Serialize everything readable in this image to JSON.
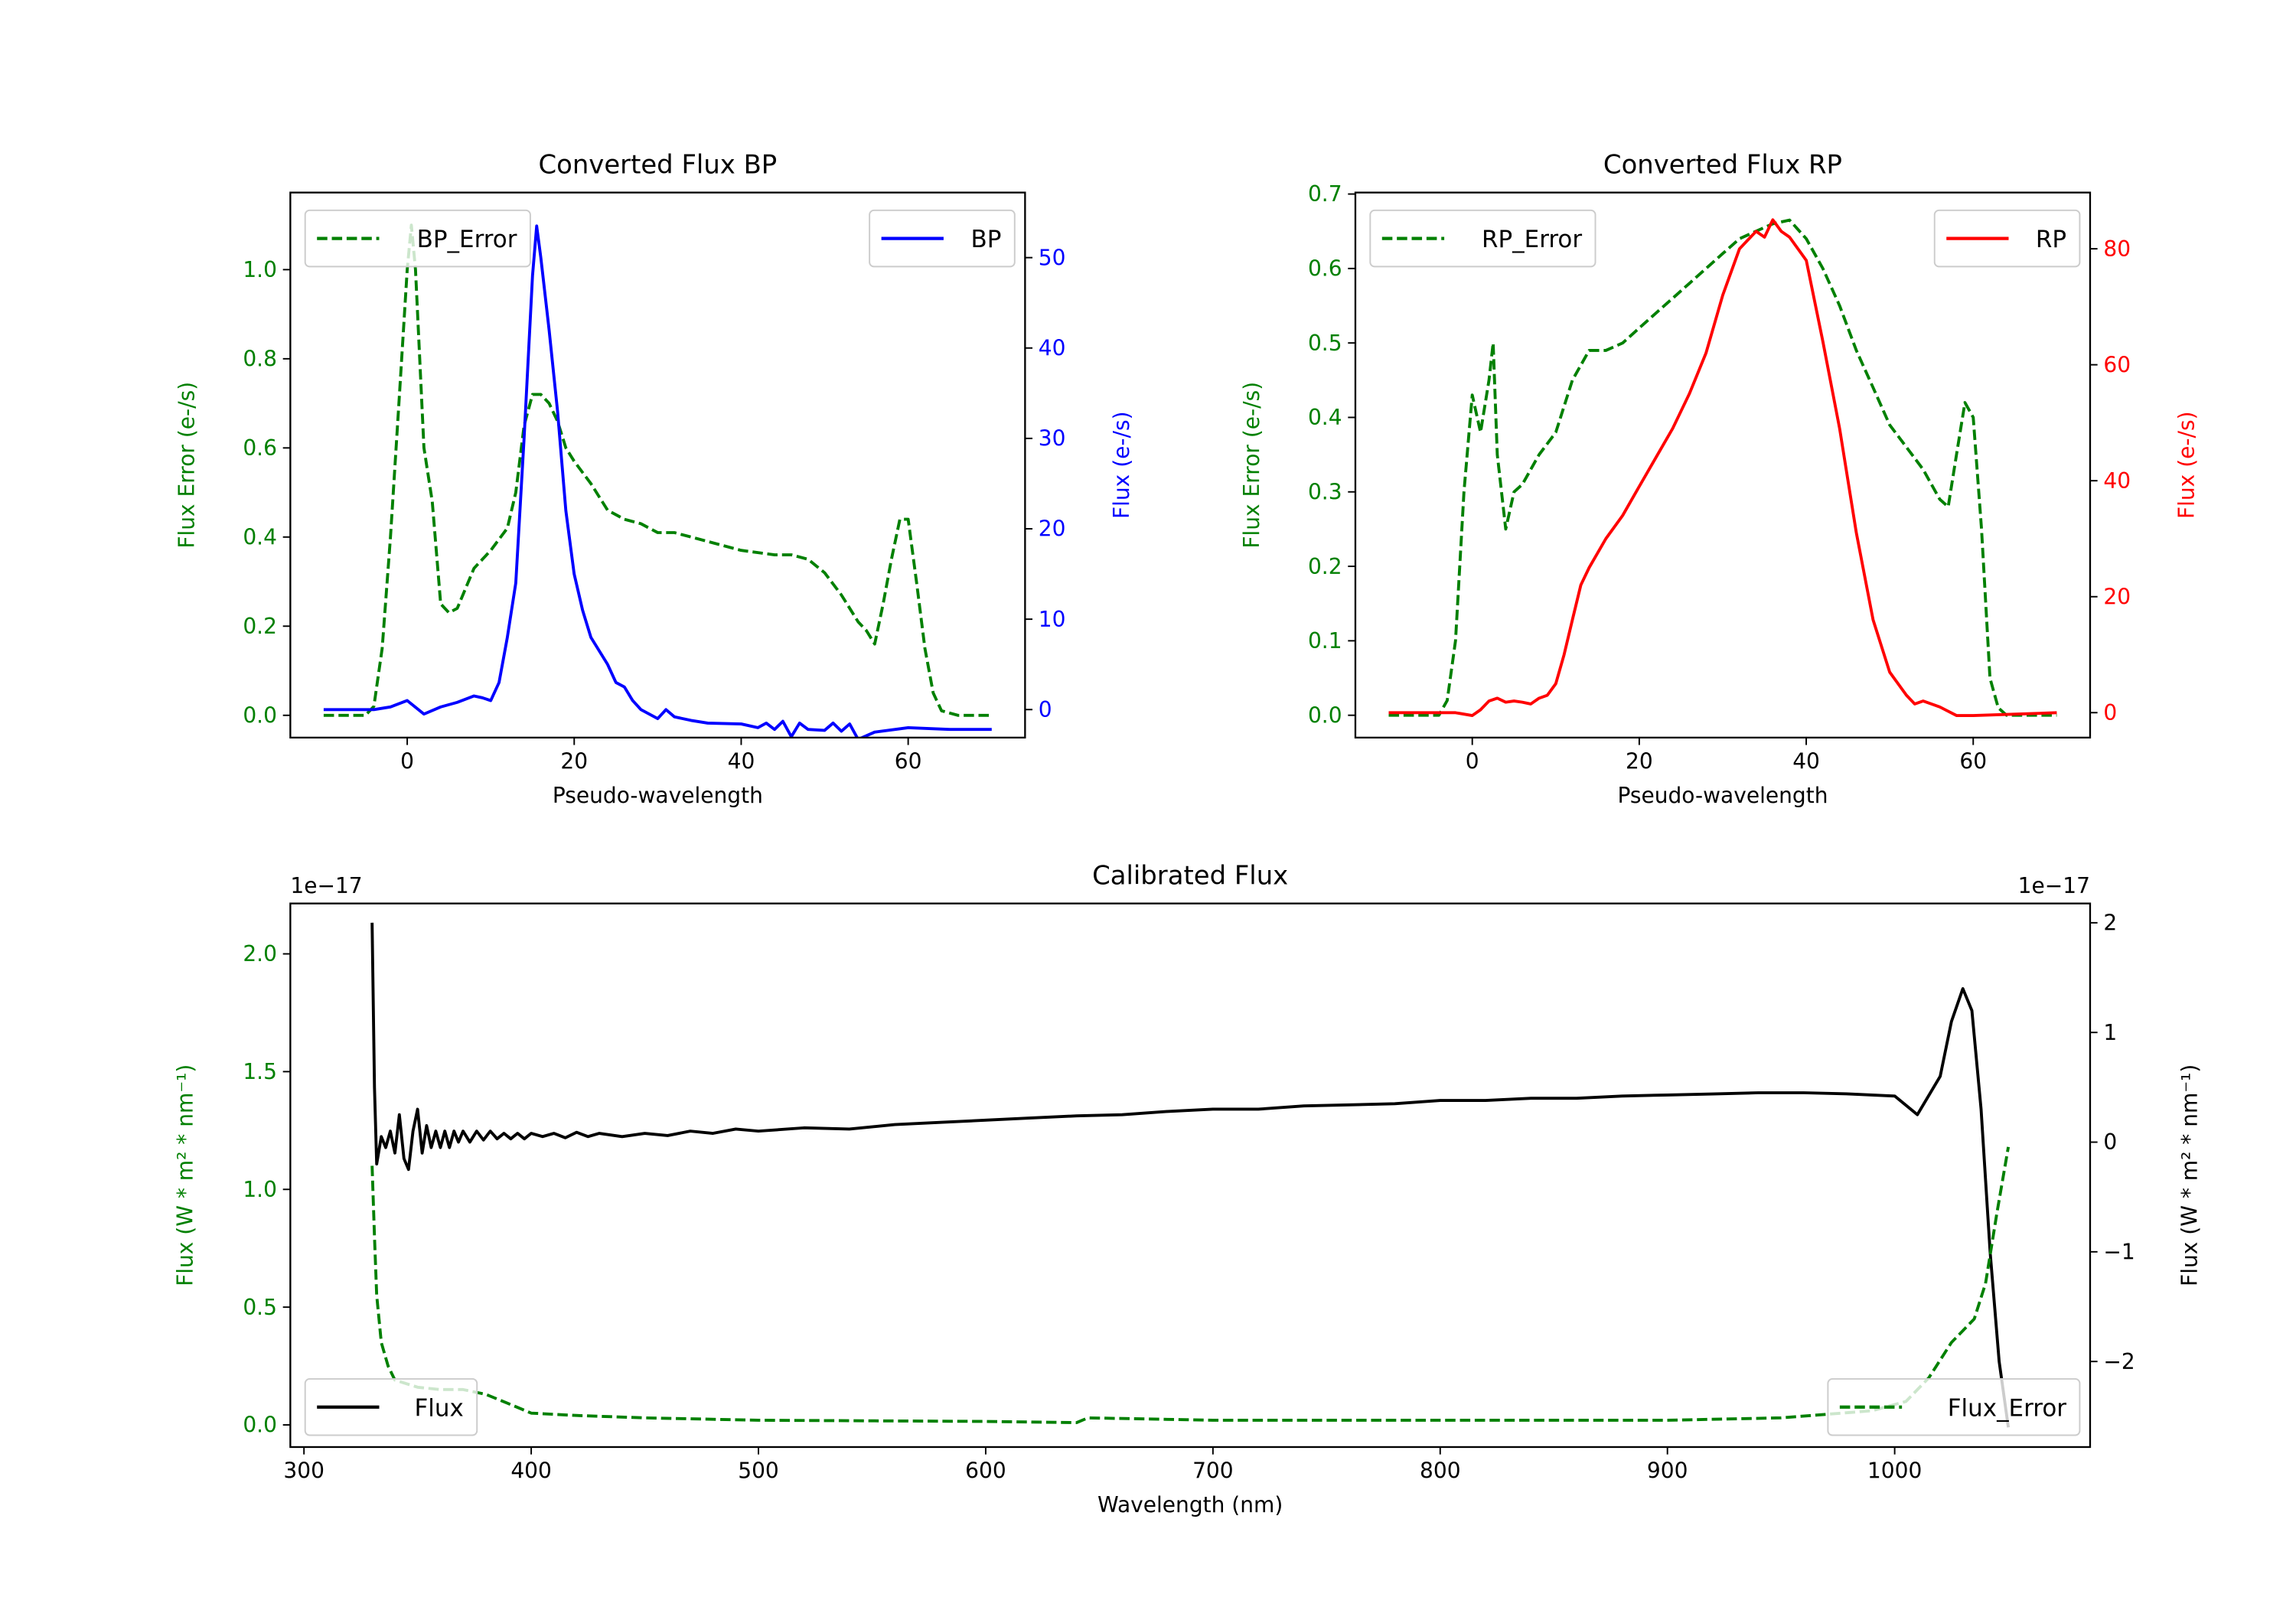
{
  "colors": {
    "error": "#008000",
    "bp": "#0000ff",
    "rp": "#ff0000",
    "flux": "#000000"
  },
  "chart_data": [
    {
      "type": "line",
      "title": "Converted Flux BP",
      "xlabel": "Pseudo-wavelength",
      "ylabel_left": "Flux Error (e-/s)",
      "ylabel_right": "Flux (e-/s)",
      "xlim": [
        -14,
        74
      ],
      "ylim_left": [
        -0.05,
        1.173
      ],
      "ylim_right": [
        -3.1,
        57.2
      ],
      "xticks": [
        0,
        20,
        40,
        60
      ],
      "yticks_left": [
        0.0,
        0.2,
        0.4,
        0.6,
        0.8,
        1.0
      ],
      "yticks_right": [
        0,
        10,
        20,
        30,
        40,
        50
      ],
      "left_tick_color": "#008000",
      "right_tick_color": "#0000ff",
      "legend_left": "BP_Error",
      "legend_right": "BP",
      "series": [
        {
          "name": "BP_Error",
          "axis": "left",
          "style": "dashed",
          "color": "#008000",
          "x": [
            -10,
            -5,
            -4,
            -3,
            -2,
            -1,
            0,
            0.5,
            1,
            2,
            3,
            4,
            5,
            6,
            8,
            10,
            12,
            13,
            14,
            15,
            16,
            17,
            18,
            19,
            20,
            22,
            24,
            26,
            28,
            30,
            32,
            36,
            40,
            44,
            46,
            48,
            50,
            52,
            54,
            55,
            56,
            57,
            58,
            59,
            60,
            61,
            62,
            63,
            64,
            66,
            70
          ],
          "y": [
            0,
            0,
            0.02,
            0.15,
            0.4,
            0.7,
            1.0,
            1.1,
            1.0,
            0.6,
            0.48,
            0.25,
            0.23,
            0.24,
            0.33,
            0.37,
            0.42,
            0.5,
            0.65,
            0.72,
            0.72,
            0.7,
            0.66,
            0.6,
            0.57,
            0.52,
            0.46,
            0.44,
            0.43,
            0.41,
            0.41,
            0.39,
            0.37,
            0.36,
            0.36,
            0.35,
            0.32,
            0.27,
            0.21,
            0.19,
            0.16,
            0.25,
            0.35,
            0.44,
            0.44,
            0.3,
            0.15,
            0.05,
            0.01,
            0,
            0
          ]
        },
        {
          "name": "BP",
          "axis": "right",
          "style": "solid",
          "color": "#0000ff",
          "x": [
            -10,
            -4,
            -2,
            0,
            2,
            4,
            6,
            8,
            9,
            10,
            11,
            12,
            13,
            14,
            15,
            15.5,
            16,
            17,
            18,
            19,
            20,
            21,
            22,
            24,
            25,
            26,
            27,
            28,
            30,
            31,
            32,
            34,
            36,
            40,
            42,
            43,
            44,
            45,
            46,
            47,
            48,
            50,
            51,
            52,
            53,
            54,
            56,
            60,
            65,
            70
          ],
          "y": [
            0,
            0,
            0.3,
            1,
            -0.5,
            0.3,
            0.8,
            1.5,
            1.3,
            1,
            3,
            8,
            14,
            30,
            48,
            53.5,
            50,
            42,
            33,
            22,
            15,
            11,
            8,
            5,
            3,
            2.5,
            1,
            0,
            -1,
            0,
            -0.8,
            -1.2,
            -1.5,
            -1.6,
            -2,
            -1.5,
            -2.2,
            -1.3,
            -3,
            -1.5,
            -2.2,
            -2.3,
            -1.5,
            -2.4,
            -1.6,
            -3.3,
            -2.5,
            -2,
            -2.2,
            -2.2
          ]
        }
      ]
    },
    {
      "type": "line",
      "title": "Converted Flux RP",
      "xlabel": "Pseudo-wavelength",
      "ylabel_left": "Flux Error (e-/s)",
      "ylabel_right": "Flux (e-/s)",
      "xlim": [
        -14,
        74
      ],
      "ylim_left": [
        -0.03,
        0.702
      ],
      "ylim_right": [
        -4.3,
        89.7
      ],
      "xticks": [
        0,
        20,
        40,
        60
      ],
      "yticks_left": [
        0.0,
        0.1,
        0.2,
        0.3,
        0.4,
        0.5,
        0.6,
        0.7
      ],
      "yticks_right": [
        0,
        20,
        40,
        60,
        80
      ],
      "left_tick_color": "#008000",
      "right_tick_color": "#ff0000",
      "legend_left": "RP_Error",
      "legend_right": "RP",
      "series": [
        {
          "name": "RP_Error",
          "axis": "left",
          "style": "dashed",
          "color": "#008000",
          "x": [
            -10,
            -4,
            -3,
            -2,
            -1,
            0,
            1,
            2,
            2.5,
            3,
            4,
            5,
            6,
            8,
            10,
            12,
            14,
            16,
            18,
            20,
            22,
            24,
            26,
            28,
            30,
            32,
            34,
            36,
            38,
            40,
            42,
            44,
            46,
            48,
            50,
            52,
            54,
            56,
            57,
            58,
            59,
            60,
            61,
            62,
            63,
            64,
            70
          ],
          "y": [
            0,
            0,
            0.02,
            0.1,
            0.3,
            0.43,
            0.38,
            0.45,
            0.5,
            0.35,
            0.25,
            0.3,
            0.31,
            0.35,
            0.38,
            0.45,
            0.49,
            0.49,
            0.5,
            0.52,
            0.54,
            0.56,
            0.58,
            0.6,
            0.62,
            0.64,
            0.65,
            0.66,
            0.665,
            0.64,
            0.6,
            0.55,
            0.49,
            0.44,
            0.39,
            0.36,
            0.33,
            0.29,
            0.28,
            0.35,
            0.42,
            0.4,
            0.25,
            0.05,
            0.01,
            0,
            0
          ]
        },
        {
          "name": "RP",
          "axis": "right",
          "style": "solid",
          "color": "#ff0000",
          "x": [
            -10,
            -2,
            0,
            1,
            2,
            3,
            4,
            5,
            6,
            7,
            8,
            9,
            10,
            11,
            12,
            13,
            14,
            16,
            18,
            20,
            22,
            24,
            26,
            28,
            30,
            32,
            34,
            35,
            36,
            37,
            38,
            40,
            42,
            44,
            46,
            48,
            50,
            52,
            53,
            54,
            56,
            58,
            60,
            70
          ],
          "y": [
            0,
            0,
            -0.5,
            0.5,
            2,
            2.5,
            1.8,
            2,
            1.8,
            1.5,
            2.5,
            3,
            5,
            10,
            16,
            22,
            25,
            30,
            34,
            39,
            44,
            49,
            55,
            62,
            72,
            80,
            83,
            82,
            85,
            83,
            82,
            78,
            64,
            49,
            31,
            16,
            7,
            3,
            1.5,
            2,
            1,
            -0.5,
            -0.5,
            0
          ]
        }
      ]
    },
    {
      "type": "line",
      "title": "Calibrated Flux",
      "xlabel": "Wavelength (nm)",
      "ylabel_left": "Flux (W * m² * nm⁻¹)",
      "ylabel_right": "Flux (W * m² * nm⁻¹)",
      "offset_left": "1e−17",
      "offset_right": "1e−17",
      "xlim": [
        294,
        1086
      ],
      "ylim_left": [
        -0.094,
        2.214
      ],
      "ylim_right": [
        -2.78,
        2.176
      ],
      "xticks": [
        300,
        400,
        500,
        600,
        700,
        800,
        900,
        1000
      ],
      "yticks_left": [
        0.0,
        0.5,
        1.0,
        1.5,
        2.0
      ],
      "yticks_right": [
        -2,
        -1,
        0,
        1,
        2
      ],
      "left_tick_color": "#008000",
      "right_tick_color": "#000000",
      "legend_left": "Flux",
      "legend_right": "Flux_Error",
      "series": [
        {
          "name": "Flux",
          "axis": "right",
          "style": "solid",
          "color": "#000000",
          "x": [
            330,
            331,
            332,
            334,
            336,
            338,
            340,
            342,
            344,
            346,
            348,
            350,
            352,
            354,
            356,
            358,
            360,
            362,
            364,
            366,
            368,
            370,
            373,
            376,
            379,
            382,
            385,
            388,
            391,
            394,
            397,
            400,
            405,
            410,
            415,
            420,
            425,
            430,
            440,
            450,
            460,
            470,
            480,
            490,
            500,
            520,
            540,
            560,
            580,
            600,
            620,
            640,
            660,
            680,
            700,
            720,
            740,
            760,
            780,
            800,
            820,
            840,
            860,
            880,
            900,
            920,
            940,
            960,
            980,
            1000,
            1010,
            1020,
            1025,
            1030,
            1034,
            1038,
            1042,
            1046,
            1050
          ],
          "y": [
            2.0,
            0.5,
            -0.2,
            0.05,
            -0.05,
            0.1,
            -0.1,
            0.25,
            -0.15,
            -0.25,
            0.1,
            0.3,
            -0.1,
            0.15,
            -0.05,
            0.1,
            -0.05,
            0.1,
            -0.05,
            0.1,
            0.0,
            0.1,
            0.0,
            0.1,
            0.02,
            0.1,
            0.03,
            0.08,
            0.03,
            0.08,
            0.03,
            0.08,
            0.05,
            0.08,
            0.04,
            0.09,
            0.05,
            0.08,
            0.05,
            0.08,
            0.06,
            0.1,
            0.08,
            0.12,
            0.1,
            0.13,
            0.12,
            0.16,
            0.18,
            0.2,
            0.22,
            0.24,
            0.25,
            0.28,
            0.3,
            0.3,
            0.33,
            0.34,
            0.35,
            0.38,
            0.38,
            0.4,
            0.4,
            0.42,
            0.43,
            0.44,
            0.45,
            0.45,
            0.44,
            0.42,
            0.25,
            0.6,
            1.1,
            1.4,
            1.2,
            0.3,
            -1.0,
            -2.0,
            -2.6
          ]
        },
        {
          "name": "Flux_Error",
          "axis": "left",
          "style": "dashed",
          "color": "#008000",
          "x": [
            330,
            331,
            332,
            334,
            337,
            340,
            350,
            360,
            370,
            380,
            390,
            400,
            420,
            450,
            500,
            600,
            640,
            645,
            700,
            800,
            900,
            950,
            990,
            1005,
            1015,
            1025,
            1035,
            1040,
            1045,
            1050
          ],
          "y": [
            1.1,
            0.8,
            0.55,
            0.35,
            0.25,
            0.19,
            0.16,
            0.15,
            0.15,
            0.13,
            0.09,
            0.05,
            0.04,
            0.03,
            0.02,
            0.015,
            0.01,
            0.03,
            0.02,
            0.02,
            0.02,
            0.03,
            0.06,
            0.1,
            0.2,
            0.35,
            0.45,
            0.6,
            0.9,
            1.18
          ]
        }
      ]
    }
  ]
}
